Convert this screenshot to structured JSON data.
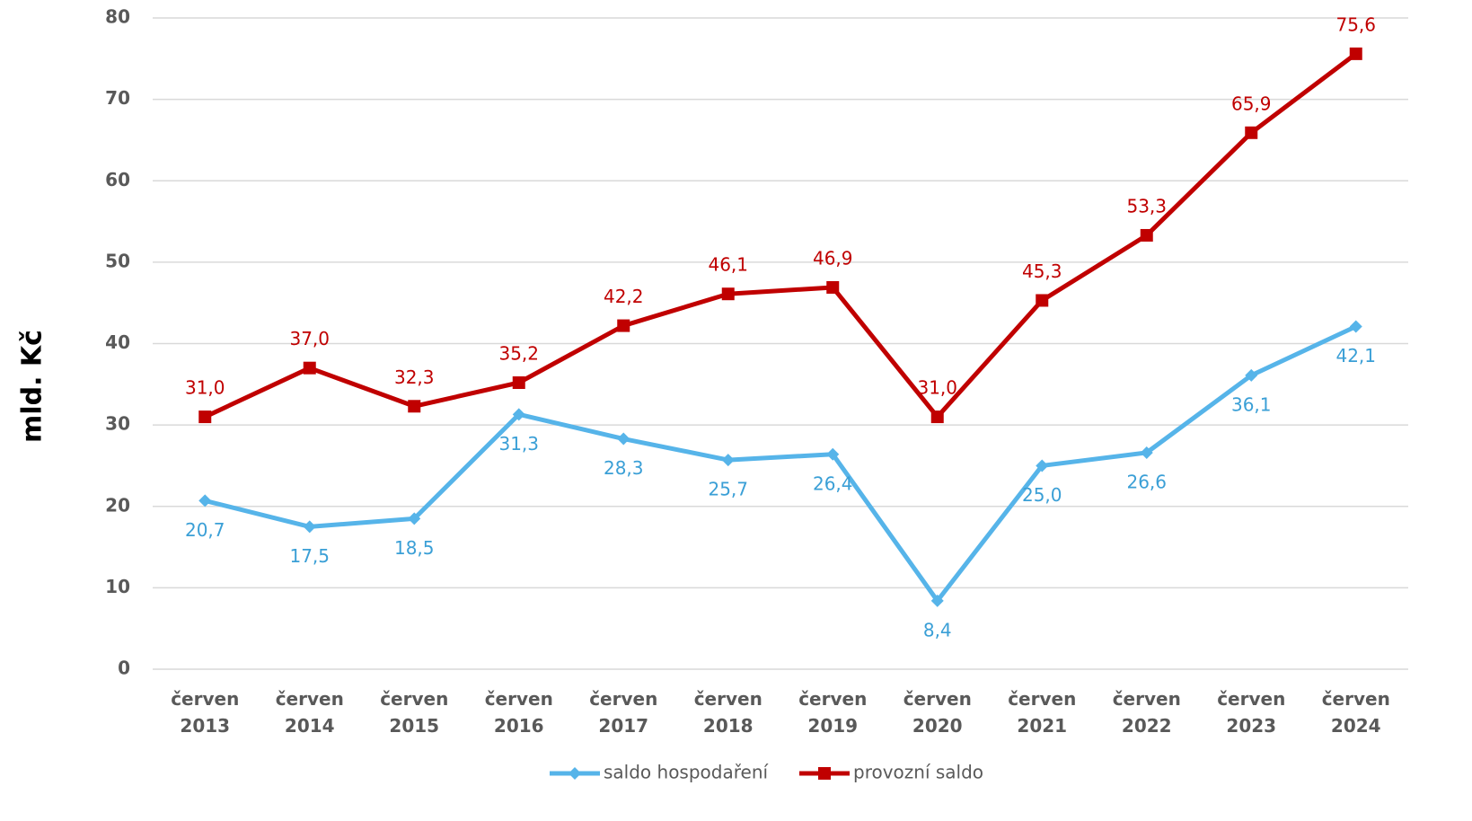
{
  "chart_data": {
    "type": "line",
    "y_label": "mld. Kč",
    "categories": [
      "červen 2013",
      "červen 2014",
      "červen 2015",
      "červen 2016",
      "červen 2017",
      "červen 2018",
      "červen 2019",
      "červen 2020",
      "červen 2021",
      "červen 2022",
      "červen 2023",
      "červen 2024"
    ],
    "series": [
      {
        "name": "saldo hospodaření",
        "color": "#56b4e9",
        "marker": "diamond",
        "label_position": "below",
        "values": [
          20.7,
          17.5,
          18.5,
          31.3,
          28.3,
          25.7,
          26.4,
          8.4,
          25.0,
          26.6,
          36.1,
          42.1
        ],
        "value_labels": [
          "20,7",
          "17,5",
          "18,5",
          "31,3",
          "28,3",
          "25,7",
          "26,4",
          "8,4",
          "25,0",
          "26,6",
          "36,1",
          "42,1"
        ]
      },
      {
        "name": "provozní saldo",
        "color": "#c00000",
        "marker": "square",
        "label_position": "above",
        "values": [
          31.0,
          37.0,
          32.3,
          35.2,
          42.2,
          46.1,
          46.9,
          31.0,
          45.3,
          53.3,
          65.9,
          75.6
        ],
        "value_labels": [
          "31,0",
          "37,0",
          "32,3",
          "35,2",
          "42,2",
          "46,1",
          "46,9",
          "31,0",
          "45,3",
          "53,3",
          "65,9",
          "75,6"
        ]
      }
    ],
    "ylim": [
      0,
      80
    ],
    "yticks": [
      0,
      10,
      20,
      30,
      40,
      50,
      60,
      70,
      80
    ],
    "grid": true,
    "legend": "bottom"
  }
}
